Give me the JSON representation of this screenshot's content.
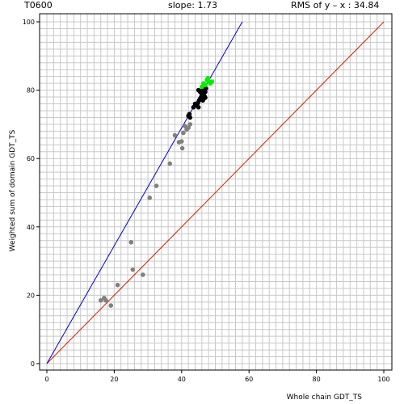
{
  "header": {
    "target": "T0600",
    "slope": "slope: 1.73",
    "rms": "RMS of  y – x : 34.84"
  },
  "chart_data": {
    "type": "scatter",
    "xlabel": "Whole chain GDT_TS",
    "ylabel": "Weighted sum of domain GDT_TS",
    "xlim": [
      0,
      100
    ],
    "ylim": [
      0,
      100
    ],
    "xticks": [
      0,
      20,
      40,
      60,
      80,
      100
    ],
    "yticks": [
      0,
      20,
      40,
      60,
      80,
      100
    ],
    "grid": true,
    "lines": [
      {
        "name": "y = x",
        "color": "#cc2200",
        "points": [
          [
            0,
            0
          ],
          [
            100,
            100
          ]
        ]
      },
      {
        "name": "fit",
        "color": "#0000cc",
        "points": [
          [
            0,
            0
          ],
          [
            58,
            100
          ]
        ]
      }
    ],
    "series": [
      {
        "color": "#808080",
        "points": [
          [
            16.0,
            18.5
          ],
          [
            17.0,
            19.2
          ],
          [
            17.5,
            18.5
          ],
          [
            19.0,
            17.0
          ],
          [
            21.0,
            23.0
          ],
          [
            25.0,
            35.5
          ],
          [
            25.5,
            27.5
          ],
          [
            28.5,
            26.0
          ],
          [
            30.5,
            48.5
          ],
          [
            32.5,
            52.0
          ],
          [
            36.5,
            58.5
          ],
          [
            38.0,
            66.8
          ],
          [
            39.2,
            64.8
          ],
          [
            40.0,
            65.0
          ],
          [
            40.2,
            63.0
          ],
          [
            40.5,
            67.5
          ],
          [
            41.0,
            69.5
          ],
          [
            41.5,
            68.5
          ],
          [
            42.0,
            69.0
          ],
          [
            42.5,
            70.0
          ]
        ]
      },
      {
        "color": "#000000",
        "points": [
          [
            42.0,
            72.5
          ],
          [
            42.3,
            73.0
          ],
          [
            42.5,
            72.0
          ],
          [
            43.5,
            75.0
          ],
          [
            44.0,
            76.0
          ],
          [
            44.5,
            75.5
          ],
          [
            44.8,
            76.2
          ],
          [
            45.0,
            75.0
          ],
          [
            45.2,
            77.0
          ],
          [
            45.5,
            77.5
          ],
          [
            45.5,
            79.5
          ],
          [
            45.8,
            78.0
          ],
          [
            46.0,
            78.5
          ],
          [
            46.2,
            80.0
          ],
          [
            46.5,
            79.0
          ],
          [
            46.8,
            78.2
          ],
          [
            47.0,
            79.5
          ],
          [
            47.0,
            77.8
          ],
          [
            47.2,
            80.5
          ],
          [
            45.0,
            80.0
          ],
          [
            44.0,
            75.5
          ],
          [
            46.3,
            77.0
          ]
        ]
      },
      {
        "color": "#00ee00",
        "points": [
          [
            46.0,
            81.0
          ],
          [
            46.5,
            82.0
          ],
          [
            47.0,
            81.5
          ],
          [
            47.5,
            83.0
          ],
          [
            48.0,
            82.5
          ],
          [
            48.5,
            82.0
          ],
          [
            49.0,
            82.5
          ],
          [
            47.8,
            83.5
          ]
        ]
      }
    ]
  }
}
